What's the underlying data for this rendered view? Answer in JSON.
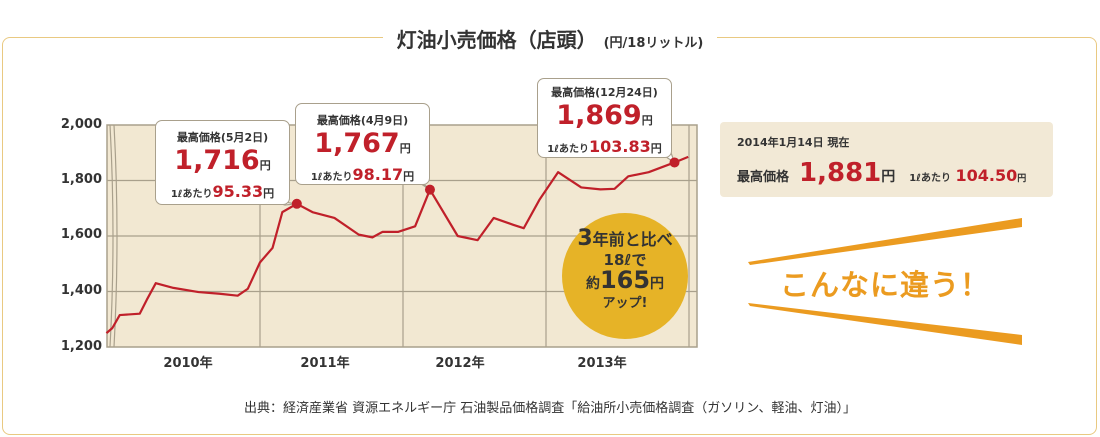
{
  "title": {
    "main": "灯油小売価格（店頭）",
    "unit": "(円/18リットル)"
  },
  "chart_data": {
    "type": "line",
    "title": "灯油小売価格（店頭）(円/18リットル)",
    "y_ticks": [
      "2,000",
      "1,800",
      "1,600",
      "1,400",
      "1,200"
    ],
    "ylim": [
      1200,
      2000
    ],
    "x_ticks": [
      "2010年",
      "2011年",
      "2012年",
      "2013年"
    ],
    "grid": true,
    "line_color": "#c0202a",
    "background": "#f2e8d2",
    "points": [
      [
        "2009-12-05",
        1250
      ],
      [
        "2009-12-20",
        1268
      ],
      [
        "2010-01-08",
        1315
      ],
      [
        "2010-02-28",
        1320
      ],
      [
        "2010-03-18",
        1370
      ],
      [
        "2010-04-10",
        1430
      ],
      [
        "2010-05-25",
        1413
      ],
      [
        "2010-07-28",
        1398
      ],
      [
        "2010-09-20",
        1392
      ],
      [
        "2010-11-05",
        1385
      ],
      [
        "2010-12-01",
        1410
      ],
      [
        "2011-01-01",
        1505
      ],
      [
        "2011-02-02",
        1557
      ],
      [
        "2011-02-27",
        1686
      ],
      [
        "2011-04-05",
        1716
      ],
      [
        "2011-05-15",
        1686
      ],
      [
        "2011-07-10",
        1665
      ],
      [
        "2011-09-10",
        1605
      ],
      [
        "2011-10-15",
        1595
      ],
      [
        "2011-11-10",
        1615
      ],
      [
        "2011-12-20",
        1615
      ],
      [
        "2012-02-01",
        1635
      ],
      [
        "2012-03-10",
        1767
      ],
      [
        "2012-05-20",
        1600
      ],
      [
        "2012-07-10",
        1585
      ],
      [
        "2012-08-20",
        1665
      ],
      [
        "2012-10-10",
        1640
      ],
      [
        "2012-11-05",
        1628
      ],
      [
        "2012-12-15",
        1730
      ],
      [
        "2013-02-01",
        1830
      ],
      [
        "2013-04-01",
        1775
      ],
      [
        "2013-05-20",
        1768
      ],
      [
        "2013-06-25",
        1770
      ],
      [
        "2013-07-30",
        1815
      ],
      [
        "2013-09-20",
        1830
      ],
      [
        "2013-11-25",
        1865
      ],
      [
        "2013-12-30",
        1885
      ]
    ],
    "markers": [
      [
        "2011-04-05",
        1716
      ],
      [
        "2012-03-10",
        1767
      ],
      [
        "2013-11-25",
        1865
      ]
    ],
    "annotations": [
      {
        "head": "最高価格",
        "date": "(5月2日)",
        "price": "1,716",
        "yen": "円",
        "per_label": "1ℓあたり",
        "per": "95.33",
        "per_yen": "円"
      },
      {
        "head": "最高価格",
        "date": "(4月9日)",
        "price": "1,767",
        "yen": "円",
        "per_label": "1ℓあたり",
        "per": "98.17",
        "per_yen": "円"
      },
      {
        "head": "最高価格",
        "date": "(12月24日)",
        "price": "1,869",
        "yen": "円",
        "per_label": "1ℓあたり",
        "per": "103.83",
        "per_yen": "円"
      }
    ]
  },
  "badge": {
    "line1a": "3",
    "line1b": "年前と比べ",
    "line2": "18ℓで",
    "line3a": "約",
    "line3b": "165",
    "line3c": "円",
    "line4": "アップ!",
    "color": "#e6b327"
  },
  "info": {
    "date": "2014年1月14日 現在",
    "label": "最高価格",
    "price": "1,881",
    "yen": "円",
    "per_label": "1ℓあたり",
    "per": "104.50",
    "per_yen": "円"
  },
  "slogan": {
    "text": "こんなに違う！",
    "color": "#eb9b20"
  },
  "source": "出典：経済産業省 資源エネルギー庁 石油製品価格調査「給油所小売価格調査（ガソリン、軽油、灯油）」"
}
